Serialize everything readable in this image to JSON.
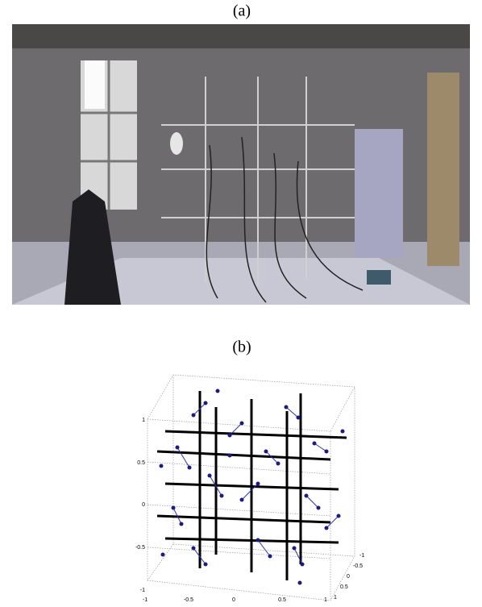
{
  "panels": [
    {
      "label": "(a)"
    },
    {
      "label": "(b)",
      "axes": {
        "z_ticks": [
          1,
          0.5,
          0,
          -0.5,
          -1
        ],
        "x_ticks": [
          -1,
          -0.5,
          0,
          0.5,
          1
        ],
        "y_ticks": [
          -1,
          -0.5,
          0,
          0.5,
          1
        ]
      }
    }
  ]
}
